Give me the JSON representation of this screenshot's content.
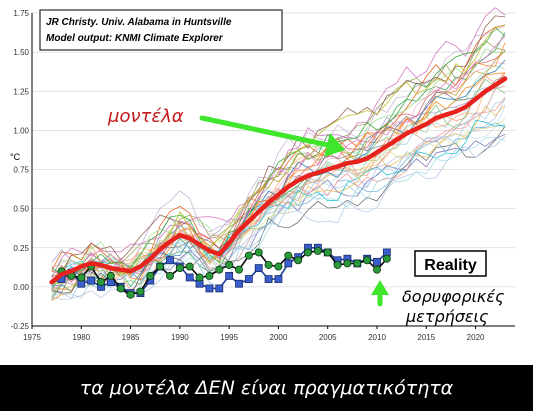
{
  "caption": "τα μοντέλα ΔΕΝ είναι πραγματικότητα",
  "chart_data": {
    "type": "line",
    "credit_line1": "JR Christy. Univ. Alabama in Huntsville",
    "credit_line2": "Model output: KNMI Climate Explorer",
    "ylabel": "°C",
    "xlim": [
      1975,
      2024
    ],
    "ylim": [
      -0.25,
      1.75
    ],
    "x_ticks": [
      "1975",
      "1980",
      "1985",
      "1990",
      "1995",
      "2000",
      "2005",
      "2010",
      "2015",
      "2020"
    ],
    "y_ticks": [
      "-0.25",
      "0.00",
      "0.25",
      "0.50",
      "0.75",
      "1.00",
      "1.25",
      "1.50",
      "1.75"
    ],
    "grid": true,
    "annotations": {
      "models_label": "μοντέλα",
      "reality_label": "Reality",
      "satellite_label_line1": "δορυφορικές",
      "satellite_label_line2": "μετρήσεις"
    },
    "series": [
      {
        "role": "model-mean",
        "x": [
          1977,
          1978,
          1979,
          1980,
          1981,
          1982,
          1983,
          1984,
          1985,
          1986,
          1987,
          1988,
          1989,
          1990,
          1991,
          1992,
          1993,
          1994,
          1995,
          1996,
          1997,
          1998,
          1999,
          2000,
          2001,
          2002,
          2003,
          2004,
          2005,
          2006,
          2007,
          2008,
          2009,
          2010,
          2011,
          2012,
          2013,
          2014,
          2015,
          2016,
          2017,
          2018,
          2019,
          2020,
          2021,
          2022,
          2023
        ],
        "values": [
          0.03,
          0.08,
          0.1,
          0.13,
          0.15,
          0.14,
          0.12,
          0.11,
          0.1,
          0.13,
          0.18,
          0.24,
          0.29,
          0.33,
          0.31,
          0.27,
          0.23,
          0.21,
          0.28,
          0.36,
          0.42,
          0.48,
          0.54,
          0.59,
          0.64,
          0.68,
          0.71,
          0.73,
          0.75,
          0.77,
          0.79,
          0.8,
          0.82,
          0.86,
          0.9,
          0.94,
          0.98,
          1.01,
          1.04,
          1.08,
          1.1,
          1.12,
          1.15,
          1.2,
          1.25,
          1.29,
          1.33
        ]
      },
      {
        "role": "satellite-a",
        "x": [
          1978,
          1979,
          1980,
          1981,
          1982,
          1983,
          1984,
          1985,
          1986,
          1987,
          1988,
          1989,
          1990,
          1991,
          1992,
          1993,
          1994,
          1995,
          1996,
          1997,
          1998,
          1999,
          2000,
          2001,
          2002,
          2003,
          2004,
          2005,
          2006,
          2007,
          2008,
          2009,
          2010,
          2011
        ],
        "values": [
          0.1,
          0.07,
          0.06,
          0.13,
          0.03,
          0.07,
          -0.01,
          -0.05,
          -0.03,
          0.07,
          0.13,
          0.07,
          0.12,
          0.13,
          0.06,
          0.07,
          0.11,
          0.14,
          0.11,
          0.2,
          0.22,
          0.14,
          0.13,
          0.2,
          0.17,
          0.22,
          0.23,
          0.22,
          0.14,
          0.15,
          0.15,
          0.17,
          0.11,
          0.18
        ]
      },
      {
        "role": "satellite-b",
        "x": [
          1978,
          1979,
          1980,
          1981,
          1982,
          1983,
          1984,
          1985,
          1986,
          1987,
          1988,
          1989,
          1990,
          1991,
          1992,
          1993,
          1994,
          1995,
          1996,
          1997,
          1998,
          1999,
          2000,
          2001,
          2002,
          2003,
          2004,
          2005,
          2006,
          2007,
          2008,
          2009,
          2010,
          2011
        ],
        "values": [
          0.05,
          0.09,
          0.02,
          0.04,
          0.0,
          0.03,
          0.0,
          -0.04,
          -0.04,
          0.04,
          0.13,
          0.17,
          0.13,
          0.06,
          0.02,
          -0.01,
          -0.01,
          0.07,
          0.02,
          0.05,
          0.12,
          0.05,
          0.05,
          0.15,
          0.19,
          0.25,
          0.25,
          0.22,
          0.17,
          0.18,
          0.15,
          0.18,
          0.16,
          0.22
        ]
      }
    ]
  }
}
